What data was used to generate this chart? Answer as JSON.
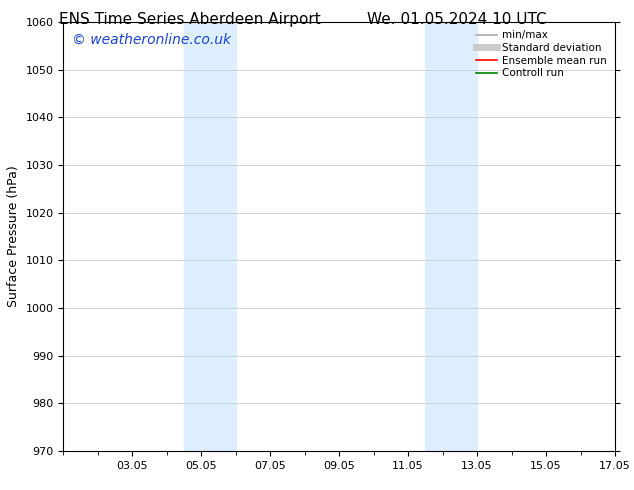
{
  "title_left": "ENS Time Series Aberdeen Airport",
  "title_right": "We. 01.05.2024 10 UTC",
  "ylabel": "Surface Pressure (hPa)",
  "ylim": [
    970,
    1060
  ],
  "yticks": [
    970,
    980,
    990,
    1000,
    1010,
    1020,
    1030,
    1040,
    1050,
    1060
  ],
  "xlim": [
    1.0,
    17.0
  ],
  "x_tick_labels": [
    "03.05",
    "05.05",
    "07.05",
    "09.05",
    "11.05",
    "13.05",
    "15.05",
    "17.05"
  ],
  "x_tick_positions": [
    3,
    5,
    7,
    9,
    11,
    13,
    15,
    17
  ],
  "shaded_bands": [
    {
      "x_start": 4.5,
      "x_end": 6.0,
      "color": "#ddeeff"
    },
    {
      "x_start": 11.5,
      "x_end": 13.0,
      "color": "#ddeeff"
    }
  ],
  "watermark_text": "© weatheronline.co.uk",
  "watermark_color": "#1a44cc",
  "watermark_fontsize": 10,
  "legend_items": [
    {
      "label": "min/max",
      "color": "#aaaaaa",
      "lw": 1.2,
      "style": "solid"
    },
    {
      "label": "Standard deviation",
      "color": "#cccccc",
      "lw": 5,
      "style": "solid"
    },
    {
      "label": "Ensemble mean run",
      "color": "red",
      "lw": 1.2,
      "style": "solid"
    },
    {
      "label": "Controll run",
      "color": "green",
      "lw": 1.2,
      "style": "solid"
    }
  ],
  "bg_color": "#ffffff",
  "grid_color": "#cccccc",
  "title_fontsize": 11,
  "axis_fontsize": 9,
  "tick_fontsize": 8,
  "legend_fontsize": 7.5
}
